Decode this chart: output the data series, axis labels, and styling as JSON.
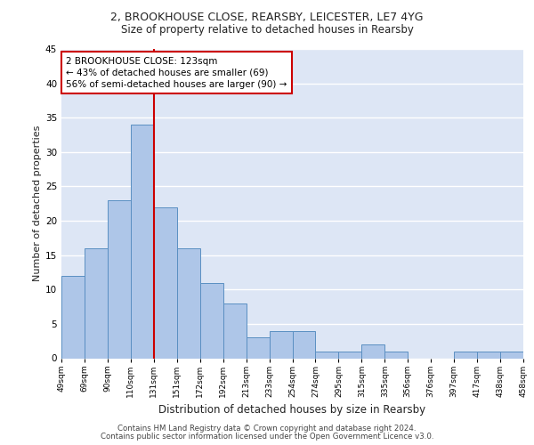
{
  "title_line1": "2, BROOKHOUSE CLOSE, REARSBY, LEICESTER, LE7 4YG",
  "title_line2": "Size of property relative to detached houses in Rearsby",
  "xlabel": "Distribution of detached houses by size in Rearsby",
  "ylabel": "Number of detached properties",
  "bar_values": [
    12,
    16,
    23,
    34,
    22,
    16,
    11,
    8,
    3,
    4,
    4,
    1,
    1,
    2,
    1,
    0,
    0,
    1,
    1,
    1
  ],
  "bin_labels": [
    "49sqm",
    "69sqm",
    "90sqm",
    "110sqm",
    "131sqm",
    "151sqm",
    "172sqm",
    "192sqm",
    "213sqm",
    "233sqm",
    "254sqm",
    "274sqm",
    "295sqm",
    "315sqm",
    "335sqm",
    "356sqm",
    "376sqm",
    "397sqm",
    "417sqm",
    "438sqm",
    "458sqm"
  ],
  "bar_color": "#aec6e8",
  "bar_edge_color": "#5a8fc2",
  "bg_color": "#dde6f5",
  "grid_color": "#ffffff",
  "vline_color": "#cc0000",
  "annotation_box_text": "2 BROOKHOUSE CLOSE: 123sqm\n← 43% of detached houses are smaller (69)\n56% of semi-detached houses are larger (90) →",
  "annotation_box_color": "#cc0000",
  "annotation_box_bg": "#ffffff",
  "footer_line1": "Contains HM Land Registry data © Crown copyright and database right 2024.",
  "footer_line2": "Contains public sector information licensed under the Open Government Licence v3.0.",
  "ylim": [
    0,
    45
  ],
  "yticks": [
    0,
    5,
    10,
    15,
    20,
    25,
    30,
    35,
    40,
    45
  ]
}
